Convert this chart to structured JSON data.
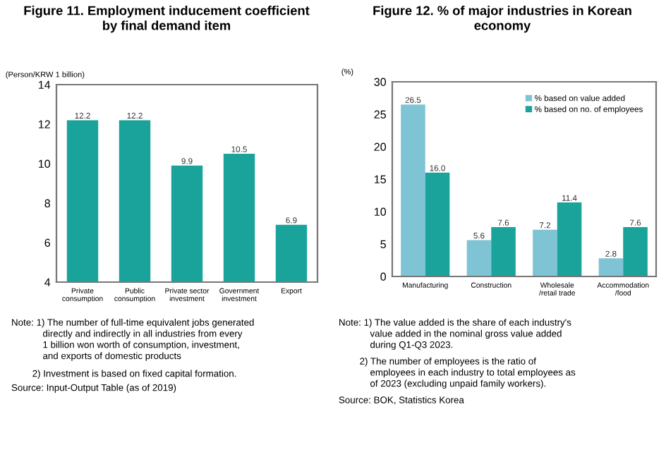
{
  "chart_data": [
    {
      "type": "bar",
      "title": "Figure 11. Employment inducement coefficient\nby final demand item",
      "ylabel": "(Person/KRW 1 billion)",
      "categories": [
        "Private\nconsumption",
        "Public\nconsumption",
        "Private sector\ninvestment",
        "Government\ninvestment",
        "Export"
      ],
      "series": [
        {
          "color": "#1aa39a",
          "values": [
            12.2,
            12.2,
            9.9,
            10.5,
            6.9
          ]
        }
      ],
      "ylim": [
        4,
        14
      ],
      "yticks": [
        4,
        6,
        8,
        10,
        12,
        14
      ],
      "data_labels": true,
      "grid": false,
      "legend": false,
      "annotations": [
        "Note: 1) The number of full-time equivalent jobs generated\n            directly and indirectly in all industries from every\n            1 billion won worth of consumption, investment,\n            and exports of domestic products",
        "        2) Investment is based on fixed capital formation.",
        "Source: Input-Output Table (as of 2019)"
      ]
    },
    {
      "type": "bar",
      "title": "Figure 12. % of major industries in Korean\neconomy",
      "ylabel": "(%)",
      "categories": [
        "Manufacturing",
        "Construction",
        "Wholesale\n/retail trade",
        "Accommodation\n/food"
      ],
      "series": [
        {
          "name": "% based on value added",
          "color": "#7ec4d4",
          "values": [
            26.5,
            5.6,
            7.2,
            2.8
          ]
        },
        {
          "name": "% based on no. of employees",
          "color": "#1aa39a",
          "values": [
            16.0,
            7.6,
            11.4,
            7.6
          ],
          "value_labels": [
            "16.0",
            "7.6",
            "11.4",
            "7.6"
          ]
        }
      ],
      "ylim": [
        0,
        30
      ],
      "yticks": [
        0,
        5,
        10,
        15,
        20,
        25,
        30
      ],
      "data_labels": true,
      "grid": false,
      "legend": "top right",
      "annotations": [
        "Note: 1) The value added is the share of each industry's\n            value added in the nominal gross value added\n            during Q1-Q3 2023.",
        "        2) The number of employees is the ratio of\n            employees in each industry to total employees as\n            of 2023 (excluding unpaid family workers).",
        "Source: BOK, Statistics Korea"
      ]
    }
  ]
}
